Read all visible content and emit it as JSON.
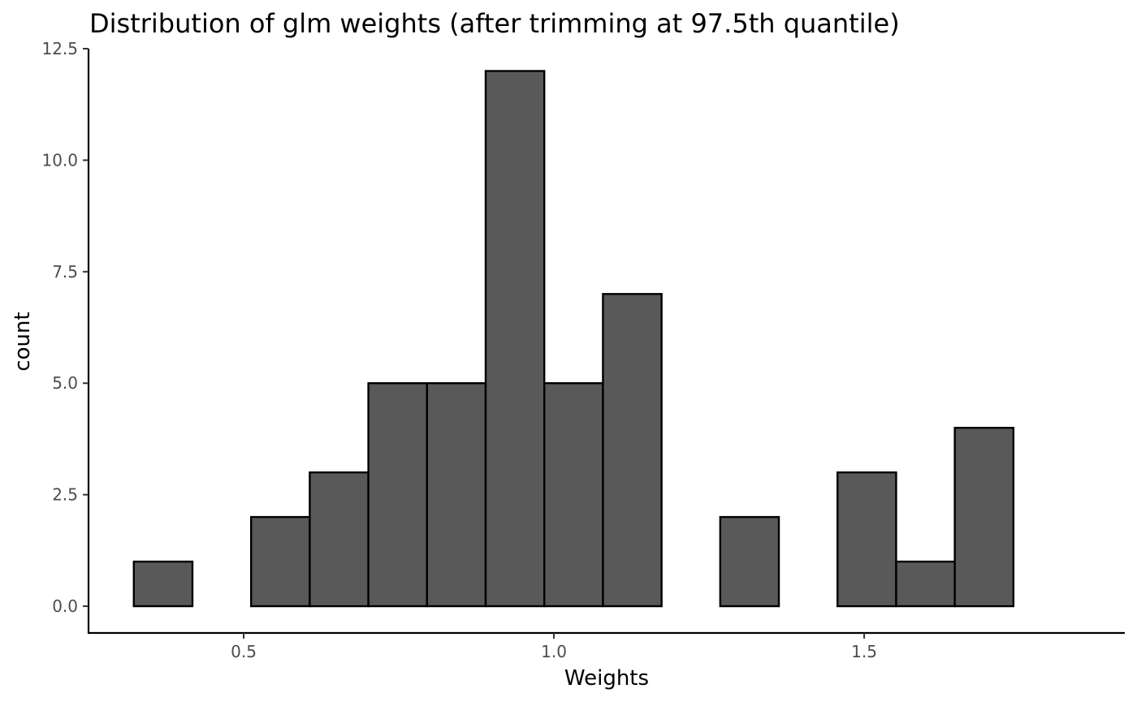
{
  "chart_data": {
    "type": "bar",
    "title": "Distribution of glm weights (after trimming at 97.5th quantile)",
    "xlabel": "Weights",
    "ylabel": "count",
    "xlim": [
      0.25,
      1.92
    ],
    "ylim": [
      -0.6,
      12.5
    ],
    "xticks": [
      0.5,
      1.0,
      1.5
    ],
    "xtick_labels": [
      "0.5",
      "1.0",
      "1.5"
    ],
    "yticks": [
      0,
      2.5,
      5,
      7.5,
      10,
      12.5
    ],
    "ytick_labels": [
      "0.0",
      "2.5",
      "5.0",
      "7.5",
      "10.0",
      "12.5"
    ],
    "bin_width": 0.0945,
    "bins": [
      {
        "x_start": 0.323,
        "x_end": 0.4175,
        "count": 1
      },
      {
        "x_start": 0.4175,
        "x_end": 0.512,
        "count": 0
      },
      {
        "x_start": 0.512,
        "x_end": 0.6065,
        "count": 2
      },
      {
        "x_start": 0.6065,
        "x_end": 0.701,
        "count": 3
      },
      {
        "x_start": 0.701,
        "x_end": 0.7955,
        "count": 5
      },
      {
        "x_start": 0.7955,
        "x_end": 0.89,
        "count": 5
      },
      {
        "x_start": 0.89,
        "x_end": 0.9845,
        "count": 12
      },
      {
        "x_start": 0.9845,
        "x_end": 1.079,
        "count": 5
      },
      {
        "x_start": 1.079,
        "x_end": 1.1735,
        "count": 7
      },
      {
        "x_start": 1.1735,
        "x_end": 1.268,
        "count": 0
      },
      {
        "x_start": 1.268,
        "x_end": 1.3625,
        "count": 2
      },
      {
        "x_start": 1.3625,
        "x_end": 1.457,
        "count": 0
      },
      {
        "x_start": 1.457,
        "x_end": 1.5515,
        "count": 3
      },
      {
        "x_start": 1.5515,
        "x_end": 1.646,
        "count": 1
      },
      {
        "x_start": 1.646,
        "x_end": 1.7405,
        "count": 4
      }
    ],
    "colors": {
      "bar_fill": "#595959",
      "bar_outline": "#000000",
      "axis": "#000000",
      "tick_label": "#4d4d4d"
    },
    "grid": false,
    "legend": "none"
  }
}
